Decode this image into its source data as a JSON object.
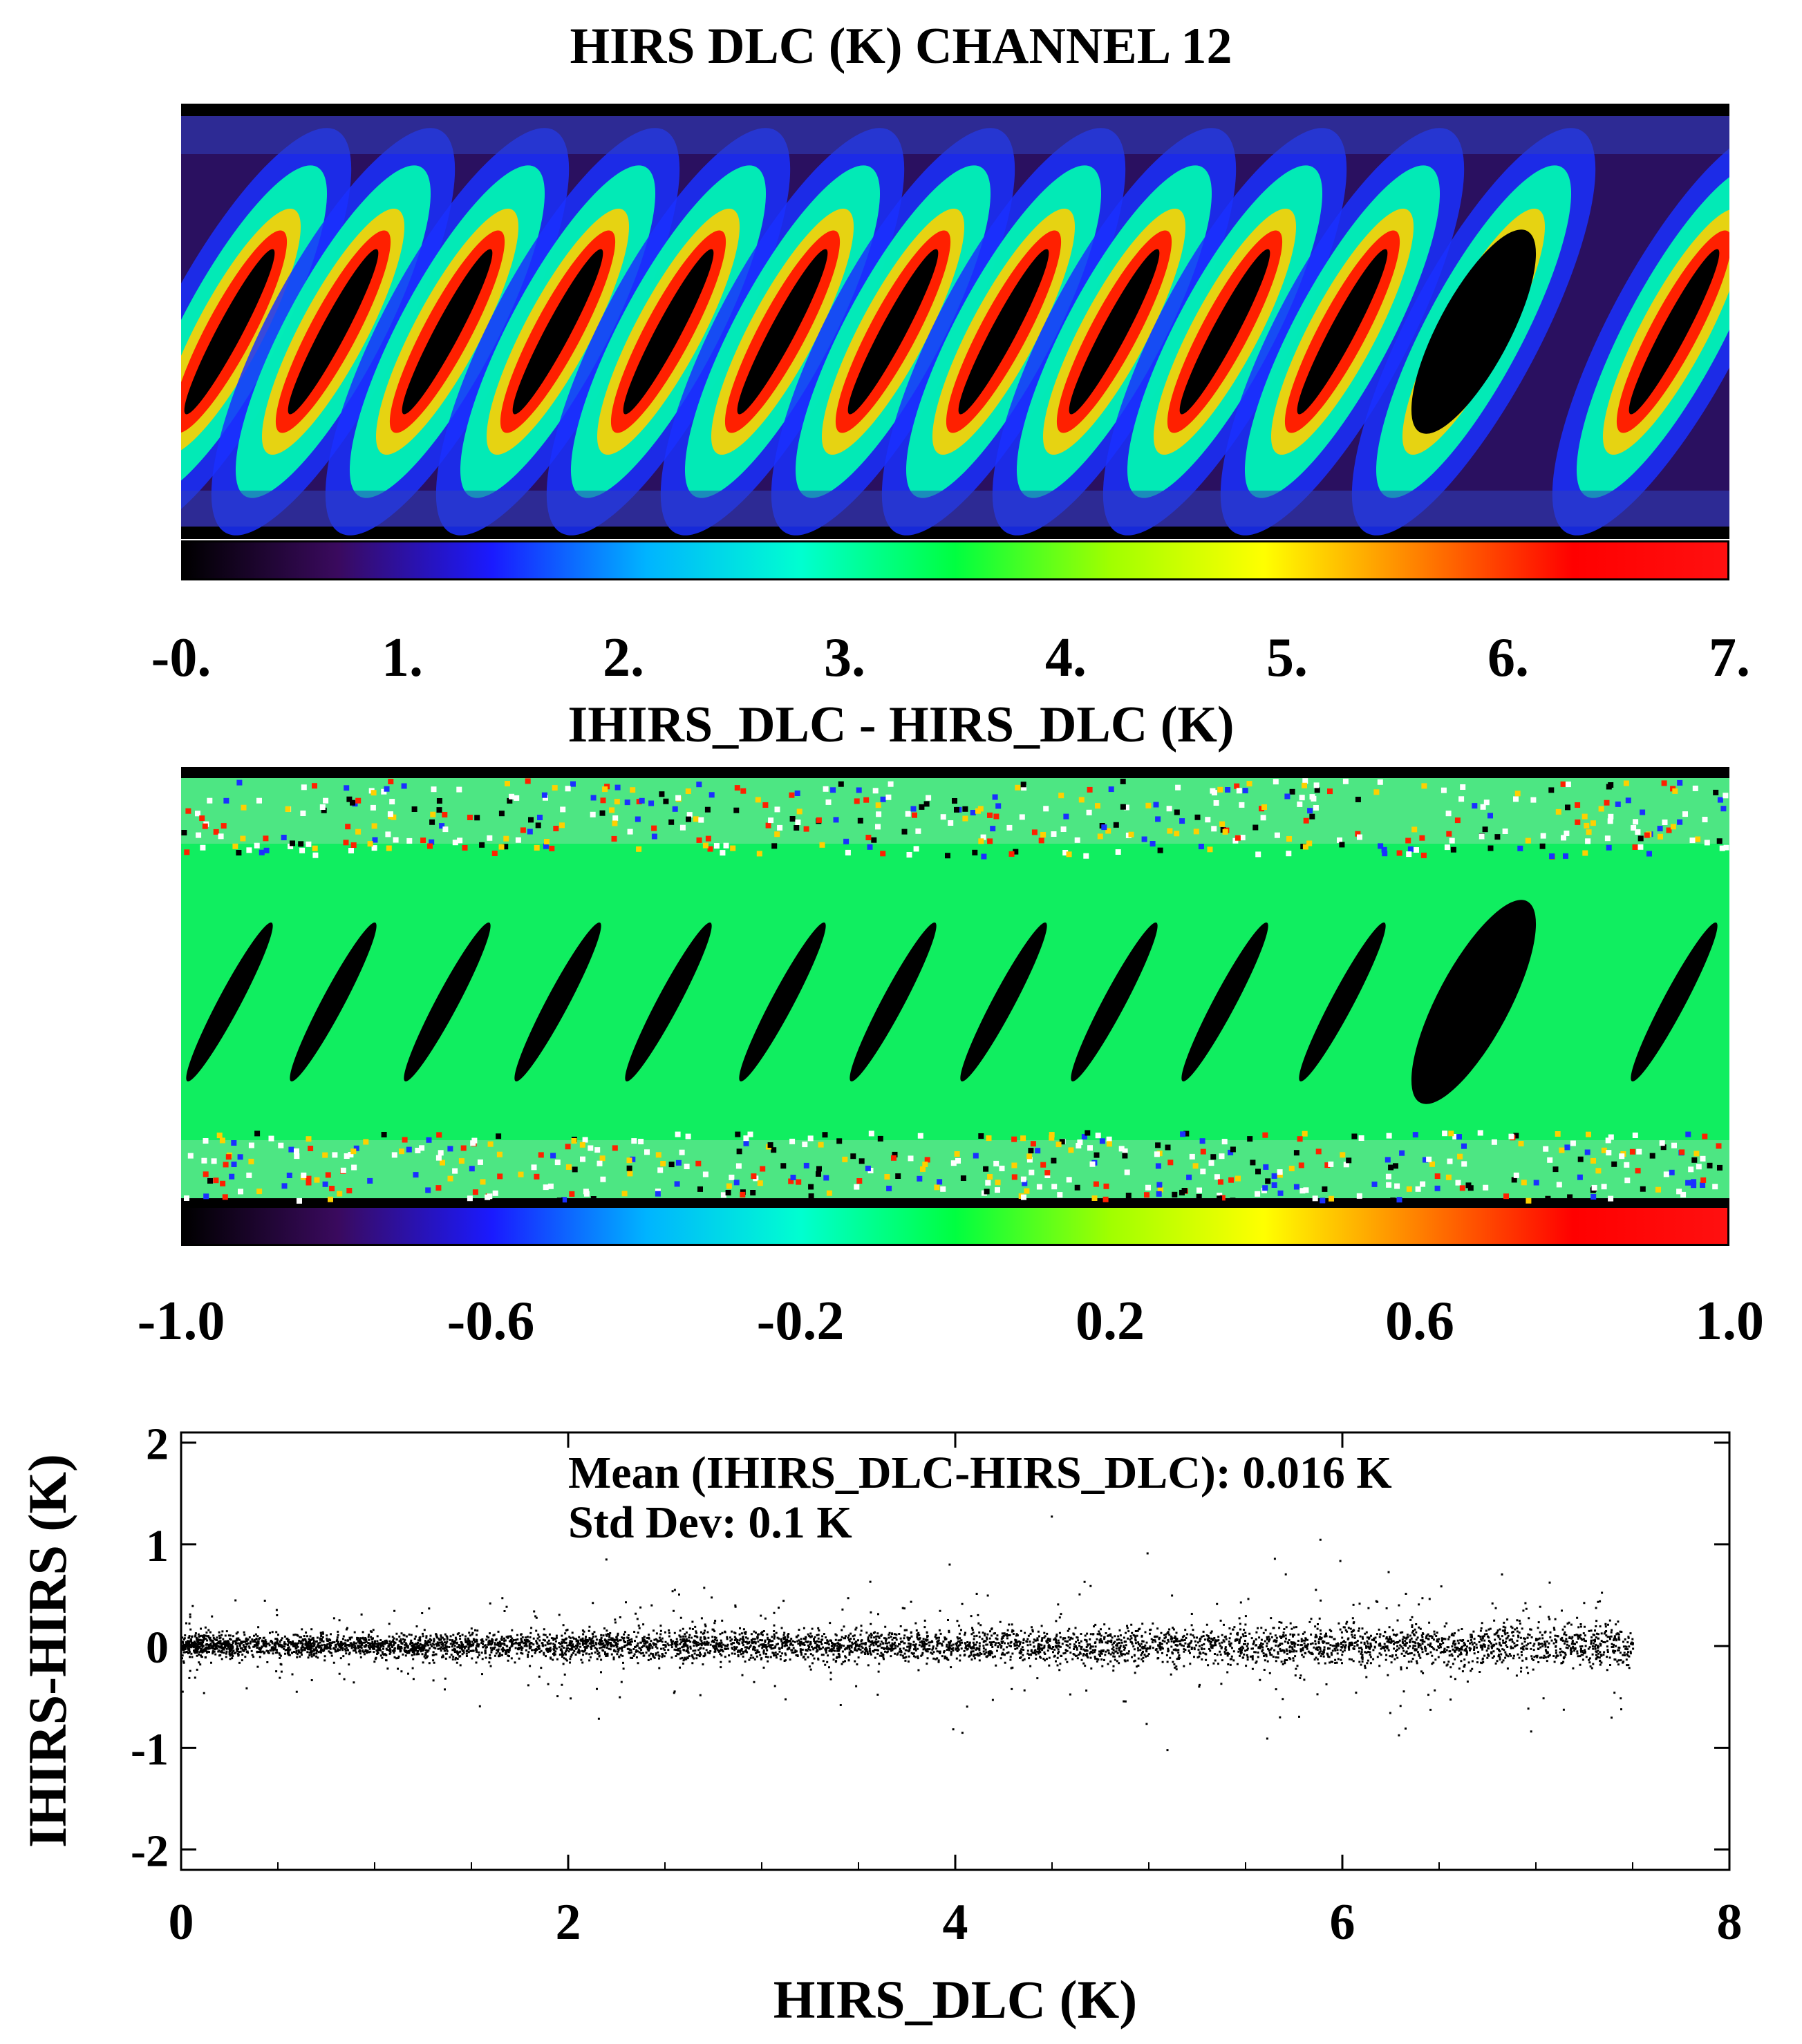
{
  "panels": {
    "map1": {
      "title": "HIRS DLC (K) CHANNEL 12",
      "colorbar_ticks": [
        "-0.",
        "1.",
        "2.",
        "3.",
        "4.",
        "5.",
        "6.",
        "7."
      ],
      "colormap": [
        "#000000",
        "#3a0a5e",
        "#1a1aff",
        "#00b4ff",
        "#00ffd0",
        "#00ff40",
        "#a0ff00",
        "#ffff00",
        "#ff8000",
        "#ff0000",
        "#ff1010"
      ]
    },
    "map2": {
      "title": "IHIRS_DLC - HIRS_DLC (K)",
      "colorbar_ticks": [
        "-1.0",
        "-0.6",
        "-0.2",
        "0.2",
        "0.6",
        "1.0"
      ],
      "colormap": [
        "#000000",
        "#3a0a5e",
        "#1a1aff",
        "#00b4ff",
        "#00ffd0",
        "#00ff40",
        "#a0ff00",
        "#ffff00",
        "#ff8000",
        "#ff0000",
        "#ff1010"
      ]
    }
  },
  "chart_data": {
    "type": "scatter",
    "xlabel": "HIRS_DLC (K)",
    "ylabel": "IHIRS-HIRS (K)",
    "xlim": [
      0,
      8
    ],
    "ylim": [
      -2.2,
      2.1
    ],
    "xticks": [
      "0",
      "2",
      "4",
      "6",
      "8"
    ],
    "yticks": [
      "2",
      "1",
      "0",
      "-1",
      "-2"
    ],
    "annotations": [
      "Mean (IHIRS_DLC-HIRS_DLC): 0.016 K",
      "Std Dev: 0.1 K"
    ],
    "point_color": "#000000",
    "mean": 0.016,
    "std_dev": 0.1,
    "point_count_approx": 30000,
    "x_extent": [
      0,
      7.5
    ]
  }
}
